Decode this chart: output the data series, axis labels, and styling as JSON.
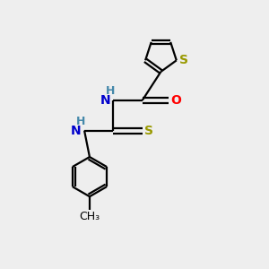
{
  "background_color": "#eeeeee",
  "bond_color": "#000000",
  "S_color": "#999900",
  "O_color": "#ff0000",
  "N_color": "#0000cc",
  "H_color": "#4488aa",
  "figsize": [
    3.0,
    3.0
  ],
  "dpi": 100,
  "lw": 1.6,
  "xlim": [
    0,
    10
  ],
  "ylim": [
    0,
    10
  ]
}
